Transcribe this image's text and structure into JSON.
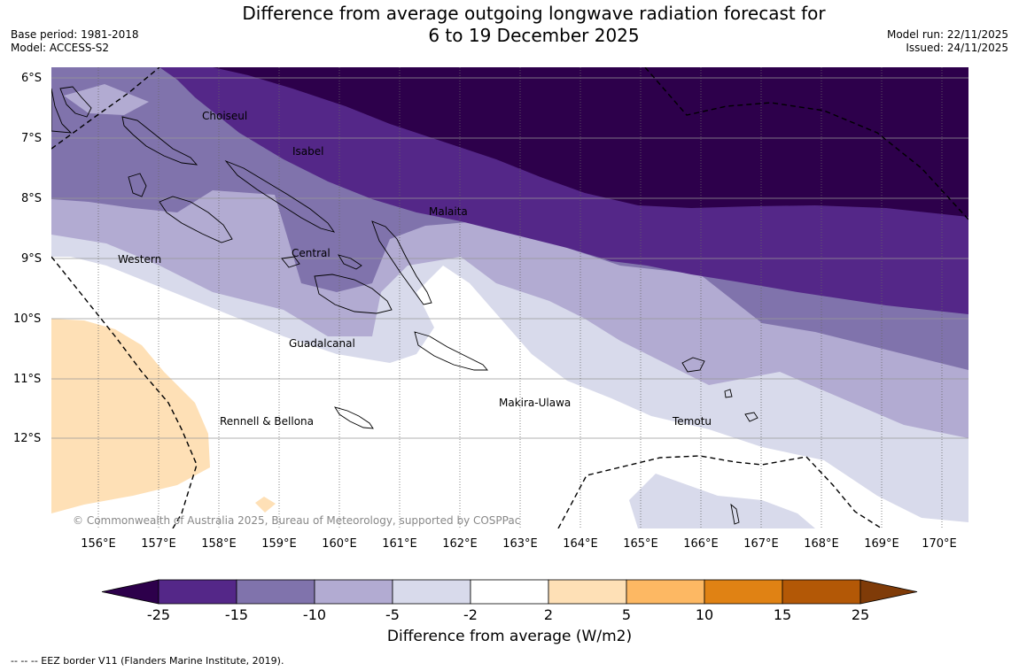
{
  "title": {
    "line1": "Difference from average outgoing longwave radiation forecast for",
    "line2": "6 to 19 December 2025"
  },
  "meta_left": {
    "base_period": "Base period: 1981-2018",
    "model": "Model: ACCESS-S2"
  },
  "meta_right": {
    "model_run": "Model run: 22/11/2025",
    "issued": "Issued: 24/11/2025"
  },
  "map": {
    "lat_labels": [
      "6°S",
      "7°S",
      "8°S",
      "9°S",
      "10°S",
      "11°S",
      "12°S"
    ],
    "lon_labels": [
      "156°E",
      "157°E",
      "158°E",
      "159°E",
      "160°E",
      "161°E",
      "162°E",
      "163°E",
      "164°E",
      "165°E",
      "166°E",
      "167°E",
      "168°E",
      "169°E",
      "170°E"
    ],
    "places": [
      "Choiseul",
      "Isabel",
      "Malaita",
      "Central",
      "Western",
      "Guadalcanal",
      "Makira-Ulawa",
      "Temotu",
      "Rennell & Bellona"
    ],
    "copyright": "© Commonwealth of Australia 2025, Bureau of Meteorology, supported by COSPPac"
  },
  "colorbar": {
    "labels": [
      "-25",
      "-15",
      "-10",
      "-5",
      "-2",
      "2",
      "5",
      "10",
      "15",
      "25"
    ],
    "colors": [
      "#2d004b",
      "#542788",
      "#8073ac",
      "#b2abd2",
      "#d8daeb",
      "#ffffff",
      "#fee0b6",
      "#fdb863",
      "#e08214",
      "#b35806",
      "#7f3b08"
    ],
    "title": "Difference from average (W/m2)"
  },
  "footnote": "--  --  -- EEZ border V11 (Flanders Marine Institute, 2019)."
}
